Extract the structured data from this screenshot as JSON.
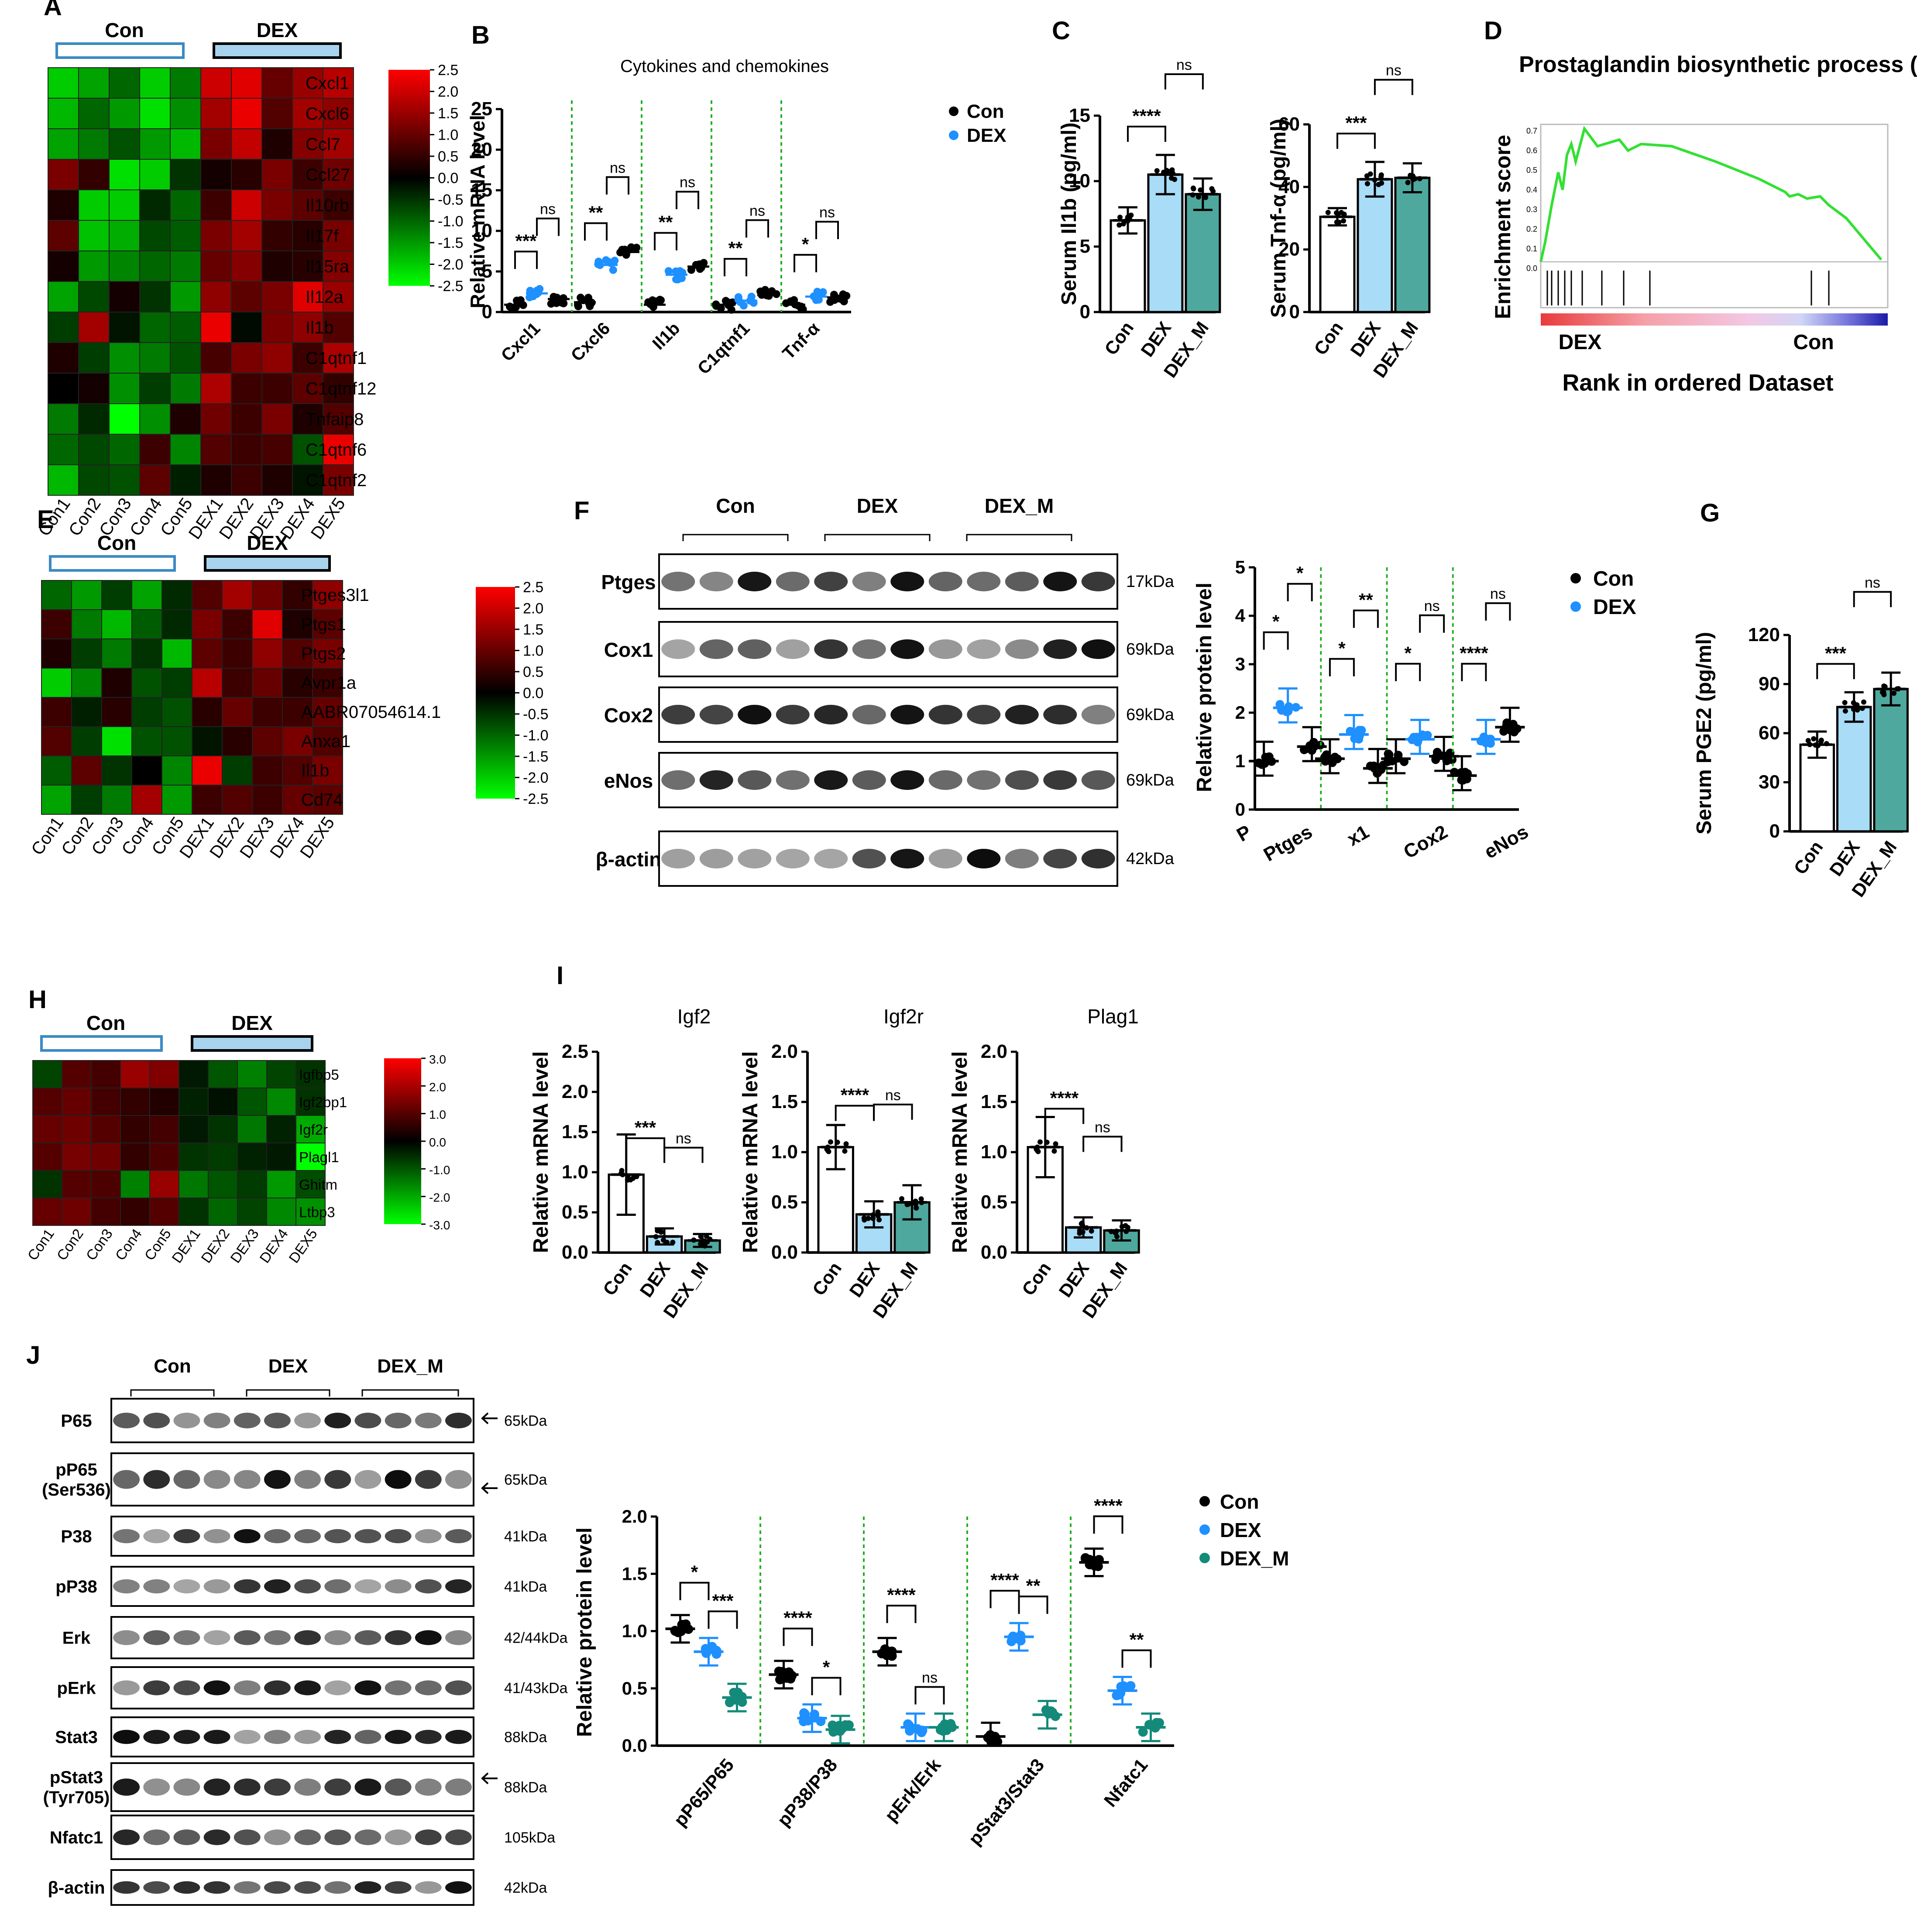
{
  "panels": {
    "A": {
      "letter": "A",
      "groups": [
        "Con",
        "DEX"
      ],
      "samples": [
        "Con1",
        "Con2",
        "Con3",
        "Con4",
        "Con5",
        "DEX1",
        "DEX2",
        "DEX3",
        "DEX4",
        "DEX5"
      ],
      "genes": [
        "Cxcl1",
        "Cxcl6",
        "Ccl7",
        "Ccl27",
        "Il10rb",
        "Il17f",
        "Il15ra",
        "Il12a",
        "Il1b",
        "C1qtnf1",
        "C1qtnf12",
        "Tnfaip8",
        "C1qtnf6",
        "C1qtnf2"
      ],
      "scale": [
        "2.5",
        "2.0",
        "1.5",
        "1.0",
        "0.5",
        "0.0",
        "-0.5",
        "-1.0",
        "-1.5",
        "-2.0",
        "-2.5"
      ],
      "values": [
        [
          -2,
          -1.6,
          -1,
          -2,
          -1.2,
          2,
          2.2,
          1,
          1.5,
          1.8
        ],
        [
          -1.8,
          -1,
          -1.5,
          -2.2,
          -1.4,
          1.6,
          2.3,
          0.8,
          1.6,
          1.4
        ],
        [
          -1.6,
          -1.2,
          -0.8,
          -1.5,
          -1.8,
          1.2,
          1.9,
          0.3,
          1.3,
          1.6
        ],
        [
          1.2,
          0.5,
          -2.2,
          -2,
          -0.5,
          0.2,
          0.4,
          1.2,
          0.6,
          1.1
        ],
        [
          0.3,
          -2,
          -2,
          -0.4,
          -1,
          0.6,
          2,
          1.2,
          0.9,
          0.6
        ],
        [
          0.9,
          -1.9,
          -1.7,
          -0.7,
          -0.9,
          1.2,
          1.6,
          0.5,
          0.4,
          1.2
        ],
        [
          0.2,
          -1.5,
          -1.3,
          -1,
          -1.2,
          1,
          1.3,
          0.3,
          0.4,
          1.3
        ],
        [
          -1.6,
          -0.7,
          0.2,
          -0.5,
          -1.5,
          1.4,
          0.9,
          1.2,
          2.2,
          1.5
        ],
        [
          -0.6,
          1.6,
          -0.2,
          -1,
          -0.9,
          2.3,
          -0.1,
          1.2,
          1.4,
          0.8
        ],
        [
          0.3,
          -0.6,
          -1.4,
          -1.2,
          -0.8,
          0.7,
          1.2,
          1.4,
          0.6,
          1.7
        ],
        [
          0,
          0.2,
          -1.4,
          -0.6,
          -1.2,
          1.7,
          0.6,
          0.6,
          0.9,
          0.5
        ],
        [
          -1.2,
          -0.4,
          -2.5,
          -1.4,
          0.3,
          1.1,
          0.6,
          1.2,
          0.3,
          0.8
        ],
        [
          -1,
          -0.7,
          -1,
          0.6,
          -1.3,
          0.8,
          0.6,
          0.7,
          -0.8,
          2.3
        ],
        [
          -1.8,
          -0.7,
          -0.8,
          0.9,
          -0.3,
          0.3,
          0.6,
          0.3,
          -0.2,
          1.2
        ]
      ]
    },
    "B": {
      "letter": "B",
      "title": "Cytokines and chemokines",
      "ylabel": "Relative mRNA  level",
      "yticks": [
        "0",
        "5",
        "10",
        "15",
        "20",
        "25"
      ],
      "categories": [
        "Cxcl1",
        "Cxcl6",
        "Il1b",
        "C1qtnf1",
        "Tnf-α"
      ],
      "legend": [
        "Con",
        "DEX"
      ],
      "sig": [
        "***",
        "ns",
        "**",
        "ns",
        "**",
        "ns",
        "**",
        "ns",
        "*",
        "ns"
      ]
    },
    "C": {
      "letter": "C",
      "left_ylabel": "Serum Il1b (pg/ml)",
      "left_yticks": [
        "0",
        "5",
        "10",
        "15"
      ],
      "right_ylabel": "Serum Tnf-α (pg/ml)",
      "right_yticks": [
        "0",
        "20",
        "40",
        "60"
      ],
      "groups": [
        "Con",
        "DEX",
        "DEX_M"
      ],
      "left_sig": [
        "****",
        "ns"
      ],
      "right_sig": [
        "***",
        "ns"
      ]
    },
    "D": {
      "letter": "D",
      "title": "Prostaglandin biosynthetic process (GO)",
      "ylabel": "Enrichment score",
      "xlabel": "Rank in ordered Dataset",
      "left_label": "DEX",
      "right_label": "Con",
      "yticks": [
        "0.7",
        "0.6",
        "0.5",
        "0.4",
        "0.3",
        "0.2",
        "0.1",
        "0.0"
      ]
    },
    "E": {
      "letter": "E",
      "groups": [
        "Con",
        "DEX"
      ],
      "samples": [
        "Con1",
        "Con2",
        "Con3",
        "Con4",
        "Con5",
        "DEX1",
        "DEX2",
        "DEX3",
        "DEX4",
        "DEX5"
      ],
      "genes": [
        "Ptges3l1",
        "Ptgs1",
        "Ptgs2",
        "Avpr1a",
        "AABR07054614.1",
        "Anxa1",
        "Il1b",
        "Cd74"
      ],
      "scale": [
        "2.5",
        "2.0",
        "1.5",
        "1.0",
        "0.5",
        "0.0",
        "-0.5",
        "-1.0",
        "-1.5",
        "-2.0",
        "-2.5"
      ],
      "values": [
        [
          -1,
          -1.5,
          -0.6,
          -1.6,
          -0.4,
          0.8,
          1.6,
          1.1,
          0.5,
          1.4
        ],
        [
          0.6,
          -1.2,
          -1.8,
          -0.9,
          -0.4,
          1.2,
          0.6,
          2.2,
          0.3,
          0.9
        ],
        [
          0.3,
          -0.6,
          -1.2,
          -0.5,
          -1.8,
          0.9,
          0.6,
          1.4,
          0.8,
          1.2
        ],
        [
          -2,
          -1.3,
          0.3,
          -0.8,
          -0.6,
          1.8,
          0.6,
          1,
          0.4,
          0.6
        ],
        [
          0.6,
          -0.3,
          0.4,
          -0.6,
          -0.8,
          0.4,
          1,
          0.6,
          0.6,
          1
        ],
        [
          0.8,
          -0.6,
          -2.2,
          -0.8,
          -0.8,
          -0.2,
          0.4,
          0.9,
          1.2,
          0.8
        ],
        [
          -0.9,
          0.9,
          -0.5,
          0,
          -1.3,
          2.3,
          -0.6,
          0.6,
          0.8,
          1.2
        ],
        [
          -1.6,
          -0.6,
          -1.2,
          1.6,
          -1.5,
          0.6,
          0.8,
          0.6,
          1,
          0.9
        ]
      ]
    },
    "F": {
      "letter": "F",
      "groups": [
        "Con",
        "DEX",
        "DEX_M"
      ],
      "blots": [
        "Ptges",
        "Cox1",
        "Cox2",
        "eNos",
        "β-actin"
      ],
      "sizes": [
        "17kDa",
        "69kDa",
        "69kDa",
        "69kDa",
        "42kDa"
      ],
      "ylabel": "Relative protein level",
      "yticks": [
        "0",
        "1",
        "2",
        "3",
        "4",
        "5"
      ],
      "categories": [
        "P",
        "Ptges",
        "x1",
        "Cox2",
        "eNos"
      ],
      "legend": [
        "Con",
        "DEX"
      ],
      "sig": [
        "*",
        "*",
        "*",
        "**",
        "*",
        "ns",
        "****",
        "ns"
      ]
    },
    "G": {
      "letter": "G",
      "ylabel": "Serum PGE2 (pg/ml)",
      "yticks": [
        "0",
        "30",
        "60",
        "90",
        "120"
      ],
      "groups": [
        "Con",
        "DEX",
        "DEX_M"
      ],
      "sig": [
        "***",
        "ns"
      ]
    },
    "H": {
      "letter": "H",
      "groups": [
        "Con",
        "DEX"
      ],
      "samples": [
        "Con1",
        "Con2",
        "Con3",
        "Con4",
        "Con5",
        "DEX1",
        "DEX2",
        "DEX3",
        "DEX4",
        "DEX5"
      ],
      "genes": [
        "Igfbp5",
        "Igf2bp1",
        "Igf2r",
        "Plagl1",
        "Ghitm",
        "Ltbp3"
      ],
      "scale": [
        "3.0",
        "2.0",
        "1.0",
        "0.0",
        "-1.0",
        "-2.0",
        "-3.0"
      ],
      "values": [
        [
          -0.8,
          1,
          0.8,
          1.8,
          1.5,
          -0.3,
          -1,
          -1.5,
          -0.8,
          -0.6
        ],
        [
          1,
          1.2,
          0.8,
          0.6,
          0.4,
          -0.4,
          -0.2,
          -1,
          -1.6,
          -0.6
        ],
        [
          1.2,
          1.3,
          1,
          0.6,
          0.8,
          -0.3,
          -0.6,
          -1.4,
          -0.4,
          -2
        ],
        [
          1,
          1.4,
          1.3,
          0.6,
          0.9,
          -0.6,
          -0.7,
          -0.4,
          -0.3,
          -3
        ],
        [
          -0.6,
          1,
          0.9,
          -1.5,
          1.8,
          -1.4,
          -1,
          -0.7,
          -1.8,
          -0.9
        ],
        [
          1.2,
          1.3,
          0.8,
          0.6,
          1,
          -0.6,
          -1.2,
          -0.8,
          -1.6,
          -1.7
        ]
      ]
    },
    "I": {
      "letter": "I",
      "ylabel": "Relative mRNA  level",
      "groups": [
        "Con",
        "DEX",
        "DEX_M"
      ],
      "sub": [
        {
          "title": "Igf2",
          "yticks": [
            "0.0",
            "0.5",
            "1.0",
            "1.5",
            "2.0",
            "2.5"
          ],
          "sig": [
            "***",
            "ns"
          ]
        },
        {
          "title": "Igf2r",
          "yticks": [
            "0.0",
            "0.5",
            "1.0",
            "1.5",
            "2.0"
          ],
          "sig": [
            "****",
            "ns"
          ]
        },
        {
          "title": "Plag1",
          "yticks": [
            "0.0",
            "0.5",
            "1.0",
            "1.5",
            "2.0"
          ],
          "sig": [
            "****",
            "ns"
          ]
        }
      ]
    },
    "J": {
      "letter": "J",
      "groups": [
        "Con",
        "DEX",
        "DEX_M"
      ],
      "blots": [
        "P65",
        "pP65\n(Ser536)",
        "P38",
        "pP38",
        "Erk",
        "pErk",
        "Stat3",
        "pStat3\n(Tyr705)",
        "Nfatc1",
        "β-actin"
      ],
      "sizes": [
        "65kDa",
        "65kDa",
        "41kDa",
        "41kDa",
        "42/44kDa",
        "41/43kDa",
        "88kDa",
        "88kDa",
        "105kDa",
        "42kDa"
      ],
      "ylabel": "Relative protein level",
      "yticks": [
        "0.0",
        "0.5",
        "1.0",
        "1.5",
        "2.0"
      ],
      "categories": [
        "pP65/P65",
        "pP38/P38",
        "pErk/Erk",
        "pStat3/Stat3",
        "Nfatc1"
      ],
      "legend": [
        "Con",
        "DEX",
        "DEX_M"
      ],
      "sig": [
        "*",
        "***",
        "****",
        "*",
        "****",
        "ns",
        "****",
        "**",
        "****",
        "**"
      ]
    }
  },
  "colors": {
    "con": "#000000",
    "dex": "#1e90ff",
    "dexm": "#138a7a",
    "dex_fill": "#a8dcf7",
    "dexm_fill": "#4fa89d",
    "green_sep": "#22b022"
  }
}
